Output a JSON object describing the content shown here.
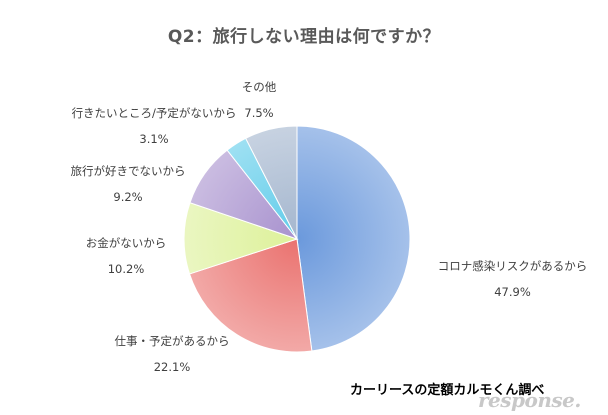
{
  "chart_data": {
    "type": "pie",
    "title": "Q2：旅行しない理由は何ですか？",
    "slices": [
      {
        "label": "コロナ感染リスクがあるから",
        "value": 47.9,
        "value_label": "47.9%",
        "color": "#5b8ed8"
      },
      {
        "label": "仕事・予定があるから",
        "value": 22.1,
        "value_label": "22.1%",
        "color": "#e8625f"
      },
      {
        "label": "お金がないから",
        "value": 10.2,
        "value_label": "10.2%",
        "color": "#d9ef8e"
      },
      {
        "label": "旅行が好きでないから",
        "value": 9.2,
        "value_label": "9.2%",
        "color": "#9e86c8"
      },
      {
        "label": "行きたいところ/予定がないから",
        "value": 3.1,
        "value_label": "3.1%",
        "color": "#4fc6e8"
      },
      {
        "label": "その他",
        "value": 7.5,
        "value_label": "7.5%",
        "color": "#9aaec8"
      }
    ],
    "start_angle_deg": 0,
    "direction": "clockwise"
  },
  "credit": "カーリースの定額カルモくん調べ",
  "watermark": "response."
}
